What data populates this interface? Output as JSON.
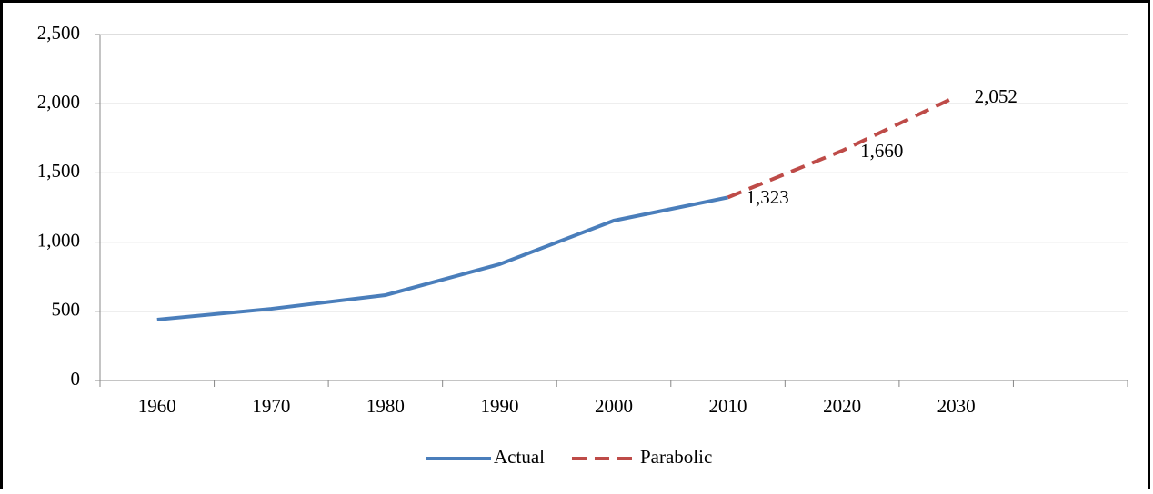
{
  "chart_data": {
    "type": "line",
    "categories": [
      "1960",
      "1970",
      "1980",
      "1990",
      "2000",
      "2010",
      "2020",
      "2030",
      null
    ],
    "series": [
      {
        "name": "Actual",
        "color": "#4a7ebb",
        "dashed": false,
        "values": [
          440,
          518,
          617,
          840,
          1155,
          1323,
          null,
          null,
          null
        ]
      },
      {
        "name": "Parabolic",
        "color": "#be4b48",
        "dashed": true,
        "values": [
          null,
          null,
          null,
          null,
          null,
          1323,
          1660,
          2052,
          null
        ],
        "value_labels": [
          null,
          null,
          null,
          null,
          null,
          "1,323",
          "1,660",
          "2,052",
          null
        ]
      }
    ],
    "ylim": [
      0,
      2500
    ],
    "yticks": [
      0,
      500,
      {
        "value": 1000,
        "label": "1,000"
      },
      {
        "value": 1500,
        "label": "1,500"
      },
      {
        "value": 2000,
        "label": "2,000"
      },
      {
        "value": 2500,
        "label": "2,500"
      }
    ],
    "grid": true,
    "legend": "bottom"
  }
}
